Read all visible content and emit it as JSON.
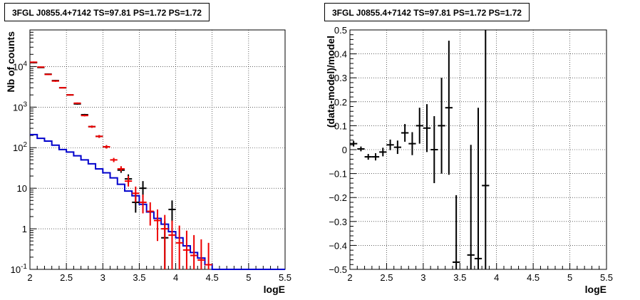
{
  "chart_data": [
    {
      "type": "line",
      "title": "3FGL J0855.4+7142 TS=97.81 PS=1.72 PS=1.72",
      "xlabel": "logE",
      "ylabel": "Nb of counts",
      "xlim": [
        2,
        5.5
      ],
      "ylim": [
        0.1,
        80000
      ],
      "y_scale": "log",
      "grid": true,
      "x_ticks": [
        "2",
        "2.5",
        "3",
        "3.5",
        "4",
        "4.5",
        "5",
        "5.5"
      ],
      "y_ticks": [
        {
          "v": 0.1,
          "label": "10",
          "exp": "-1"
        },
        {
          "v": 1,
          "label": "1",
          "exp": ""
        },
        {
          "v": 10,
          "label": "10",
          "exp": ""
        },
        {
          "v": 100,
          "label": "10",
          "exp": "2"
        },
        {
          "v": 1000,
          "label": "10",
          "exp": "3"
        },
        {
          "v": 10000,
          "label": "10",
          "exp": "4"
        }
      ],
      "series": [
        {
          "color": "#000000",
          "x": [
            2.05,
            2.15,
            2.25,
            2.35,
            2.45,
            2.55,
            2.65,
            2.75,
            2.85,
            2.95,
            3.05,
            3.15,
            3.25,
            3.35,
            3.45,
            3.55,
            3.65,
            3.75,
            3.85,
            3.95,
            4.05,
            4.15,
            4.25,
            4.35,
            4.45
          ],
          "y": [
            12500,
            9500,
            6500,
            4500,
            3000,
            2000,
            1200,
            650,
            330,
            190,
            105,
            null,
            28,
            17,
            4.5,
            10,
            null,
            null,
            0.6,
            3,
            null,
            null,
            null,
            null,
            null
          ],
          "ylo": [
            12000,
            9200,
            6300,
            4300,
            2900,
            1930,
            1150,
            620,
            310,
            175,
            95,
            null,
            24,
            13,
            2.5,
            6,
            null,
            null,
            0.1,
            1.5,
            null,
            null,
            null,
            null,
            null
          ],
          "yhi": [
            13000,
            9800,
            6700,
            4700,
            3100,
            2070,
            1250,
            680,
            350,
            205,
            115,
            null,
            32,
            22,
            7,
            15,
            null,
            null,
            1.5,
            5,
            null,
            null,
            null,
            null,
            null
          ]
        },
        {
          "color": "#ee0000",
          "x": [
            2.05,
            2.15,
            2.25,
            2.35,
            2.45,
            2.55,
            2.65,
            2.75,
            2.85,
            2.95,
            3.05,
            3.15,
            3.25,
            3.35,
            3.45,
            3.55,
            3.65,
            3.75,
            3.85,
            3.95,
            4.05,
            4.15,
            4.25,
            4.35,
            4.45
          ],
          "y": [
            12800,
            9700,
            6400,
            4400,
            3000,
            2000,
            1250,
            620,
            330,
            190,
            105,
            50,
            30,
            15,
            7.5,
            4.5,
            2.7,
            1.6,
            1,
            0.7,
            0.45,
            0.3,
            0.22,
            0.17,
            0.13
          ],
          "ylo": [
            12300,
            9400,
            6200,
            4200,
            2900,
            1930,
            1200,
            590,
            310,
            175,
            95,
            44,
            26,
            11,
            4.5,
            2.4,
            1.2,
            0.5,
            0.1,
            0.1,
            0.1,
            0.1,
            0.1,
            0.1,
            0.1
          ],
          "yhi": [
            13300,
            10000,
            6600,
            4600,
            3100,
            2070,
            1300,
            650,
            350,
            205,
            115,
            56,
            35,
            20,
            11,
            7,
            4.5,
            3,
            2.2,
            1.6,
            1.2,
            0.9,
            0.7,
            0.55,
            0.45
          ]
        },
        {
          "color": "#0000cc",
          "step": true,
          "edges": [
            2.0,
            2.1,
            2.2,
            2.3,
            2.4,
            2.5,
            2.6,
            2.7,
            2.8,
            2.9,
            3.0,
            3.1,
            3.2,
            3.3,
            3.4,
            3.5,
            3.6,
            3.7,
            3.8,
            3.9,
            4.0,
            4.1,
            4.2,
            4.3,
            4.4,
            4.5,
            5.5
          ],
          "y": [
            210,
            170,
            145,
            115,
            90,
            78,
            63,
            50,
            40,
            30,
            24,
            18,
            12.5,
            8.5,
            6.5,
            4,
            2.6,
            1.8,
            1.3,
            0.85,
            0.6,
            0.38,
            0.26,
            0.19,
            0.13,
            0.1
          ]
        }
      ]
    },
    {
      "type": "scatter",
      "title": "3FGL J0855.4+7142 TS=97.81 PS=1.72 PS=1.72",
      "xlabel": "logE",
      "ylabel": "(data-model)/model",
      "xlim": [
        2,
        5.5
      ],
      "ylim": [
        -0.5,
        0.5
      ],
      "grid": true,
      "x_ticks": [
        "2",
        "2.5",
        "3",
        "3.5",
        "4",
        "4.5",
        "5",
        "5.5"
      ],
      "y_ticks": [
        "−0.5",
        "−0.4",
        "−0.3",
        "−0.2",
        "−0.1",
        "0",
        "0.1",
        "0.2",
        "0.3",
        "0.4",
        "0.5"
      ],
      "series": [
        {
          "color": "#000000",
          "x": [
            2.05,
            2.15,
            2.25,
            2.35,
            2.45,
            2.55,
            2.65,
            2.75,
            2.85,
            2.95,
            3.05,
            3.15,
            3.25,
            3.35,
            3.45,
            3.65,
            3.75,
            3.85
          ],
          "y": [
            0.025,
            0.003,
            -0.03,
            -0.03,
            -0.01,
            0.02,
            0.01,
            0.07,
            0.025,
            0.1,
            0.09,
            0.0,
            0.1,
            0.175,
            -0.47,
            -0.44,
            -0.455,
            -0.15
          ],
          "yerr": [
            0.012,
            0.01,
            0.012,
            0.015,
            0.018,
            0.022,
            0.028,
            0.037,
            0.048,
            0.075,
            0.1,
            0.14,
            0.2,
            0.28,
            0.28,
            0.46,
            0.63,
            0.85
          ]
        }
      ]
    }
  ]
}
